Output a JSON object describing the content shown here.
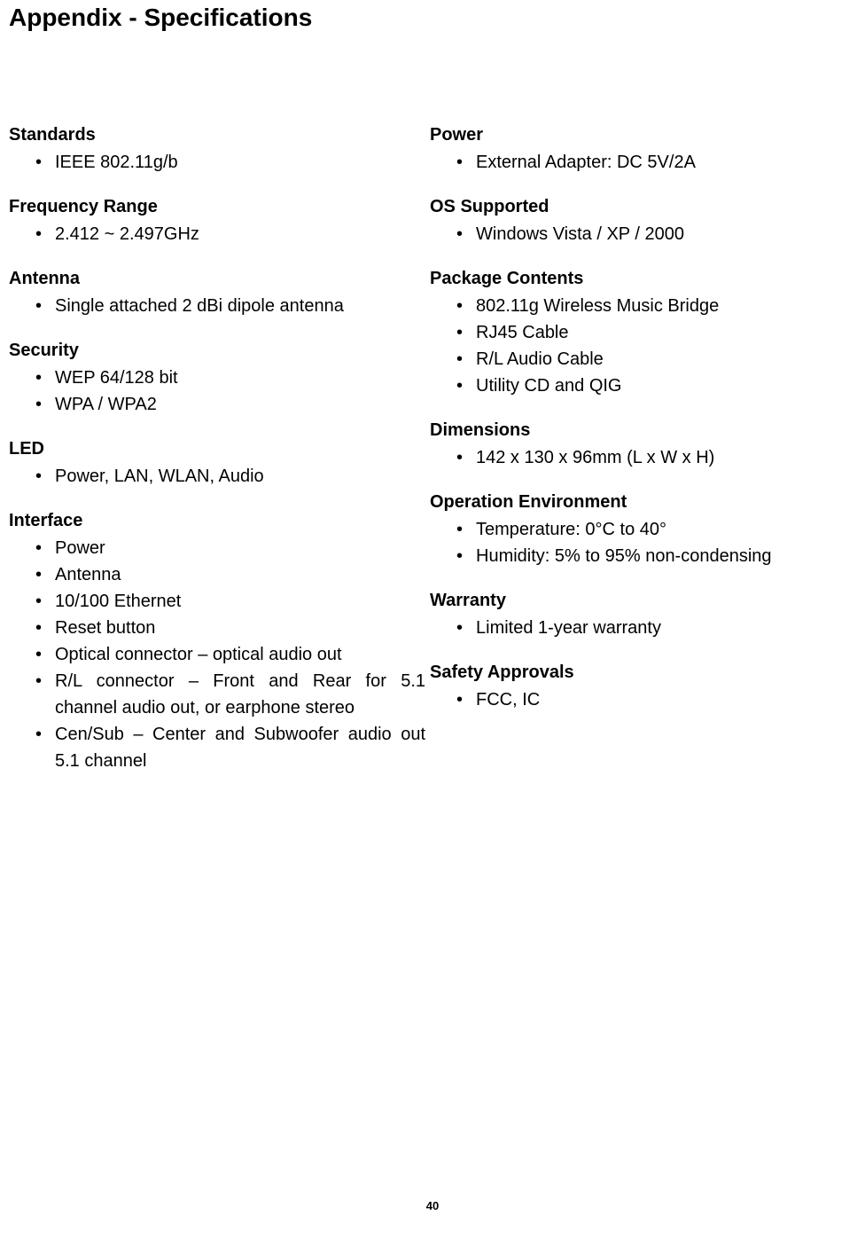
{
  "page_title": "Appendix - Specifications",
  "page_number": "40",
  "left_column": {
    "sections": [
      {
        "heading": "Standards",
        "items": [
          "IEEE 802.11g/b"
        ]
      },
      {
        "heading": "Frequency Range",
        "items": [
          "2.412 ~ 2.497GHz"
        ]
      },
      {
        "heading": "Antenna",
        "items": [
          "Single attached 2 dBi dipole antenna"
        ]
      },
      {
        "heading": "Security",
        "items": [
          "WEP 64/128 bit",
          "WPA / WPA2"
        ]
      },
      {
        "heading": "LED",
        "items": [
          "Power, LAN, WLAN, Audio"
        ]
      },
      {
        "heading": "Interface",
        "items": [
          "Power",
          "Antenna",
          "10/100 Ethernet",
          "Reset button",
          "Optical connector – optical audio out",
          "R/L connector – Front and Rear for 5.1 channel audio out, or earphone stereo",
          "Cen/Sub – Center and Subwoofer audio out  5.1 channel"
        ]
      }
    ]
  },
  "right_column": {
    "sections": [
      {
        "heading": "Power",
        "items": [
          "External Adapter: DC 5V/2A"
        ]
      },
      {
        "heading": "OS Supported",
        "items": [
          "Windows Vista /  XP / 2000"
        ]
      },
      {
        "heading": "Package Contents",
        "items": [
          "802.11g Wireless Music Bridge",
          "RJ45 Cable",
          "R/L Audio Cable",
          "Utility CD and QIG"
        ]
      },
      {
        "heading": "Dimensions",
        "items": [
          "142 x 130 x 96mm (L x W x H)"
        ]
      },
      {
        "heading": "Operation Environment",
        "items": [
          "Temperature: 0°C to 40°",
          "Humidity: 5% to 95% non-condensing"
        ]
      },
      {
        "heading": "Warranty",
        "items": [
          "Limited 1-year warranty"
        ]
      },
      {
        "heading": "Safety Approvals",
        "items": [
          "FCC, IC"
        ]
      }
    ]
  }
}
